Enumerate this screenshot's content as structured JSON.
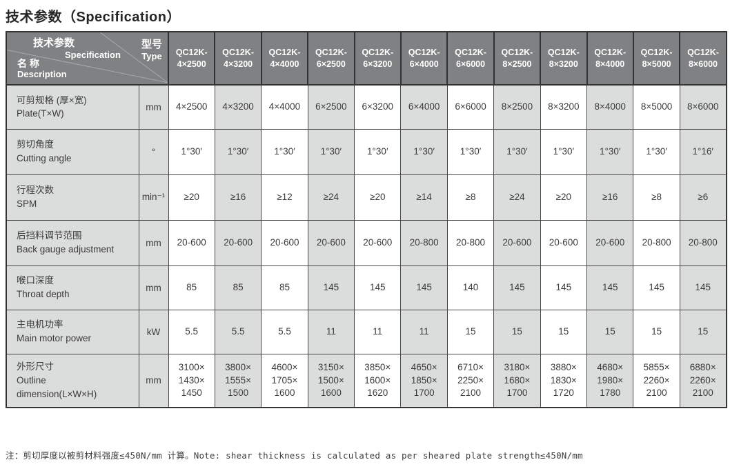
{
  "page": {
    "title": "技术参数（Specification）",
    "note": "注：剪切厚度以被剪材料强度≤450N/mm 计算。Note: shear thickness is calculated as per sheared plate strength≤450N/mm"
  },
  "colors": {
    "header_bg": "#7f8183",
    "row_shade": "#dbdcdc",
    "border": "#353535",
    "header_text": "#ffffff",
    "body_text": "#3b3b3b"
  },
  "table": {
    "corner": {
      "top": "技术参数",
      "top_sub": "Specification",
      "bottom": "名 称",
      "bottom_sub": "Description",
      "type_label": "型号",
      "type_sub": "Type"
    },
    "models": [
      {
        "line1": "QC12K-",
        "line2": "4×2500"
      },
      {
        "line1": "QC12K-",
        "line2": "4×3200"
      },
      {
        "line1": "QC12K-",
        "line2": "4×4000"
      },
      {
        "line1": "QC12K-",
        "line2": "6×2500"
      },
      {
        "line1": "QC12K-",
        "line2": "6×3200"
      },
      {
        "line1": "QC12K-",
        "line2": "6×4000"
      },
      {
        "line1": "QC12K-",
        "line2": "6×6000"
      },
      {
        "line1": "QC12K-",
        "line2": "8×2500"
      },
      {
        "line1": "QC12K-",
        "line2": "8×3200"
      },
      {
        "line1": "QC12K-",
        "line2": "8×4000"
      },
      {
        "line1": "QC12K-",
        "line2": "8×5000"
      },
      {
        "line1": "QC12K-",
        "line2": "8×6000"
      }
    ],
    "rows": [
      {
        "name_zh": "可剪规格 (厚×宽)",
        "name_en": "Plate(T×W)",
        "unit": "mm",
        "values": [
          "4×2500",
          "4×3200",
          "4×4000",
          "6×2500",
          "6×3200",
          "6×4000",
          "6×6000",
          "8×2500",
          "8×3200",
          "8×4000",
          "8×5000",
          "8×6000"
        ]
      },
      {
        "name_zh": "剪切角度",
        "name_en": "Cutting angle",
        "unit": "°",
        "values": [
          "1°30′",
          "1°30′",
          "1°30′",
          "1°30′",
          "1°30′",
          "1°30′",
          "1°30′",
          "1°30′",
          "1°30′",
          "1°30′",
          "1°30′",
          "1°16′"
        ]
      },
      {
        "name_zh": "行程次数",
        "name_en": "SPM",
        "unit": "min⁻¹",
        "values": [
          "≥20",
          "≥16",
          "≥12",
          "≥24",
          "≥20",
          "≥14",
          "≥8",
          "≥24",
          "≥20",
          "≥16",
          "≥8",
          "≥6"
        ]
      },
      {
        "name_zh": "后挡料调节范围",
        "name_en": "Back gauge adjustment",
        "unit": "mm",
        "values": [
          "20-600",
          "20-600",
          "20-600",
          "20-600",
          "20-600",
          "20-800",
          "20-800",
          "20-600",
          "20-600",
          "20-600",
          "20-800",
          "20-800"
        ]
      },
      {
        "name_zh": "喉口深度",
        "name_en": "Throat depth",
        "unit": "mm",
        "values": [
          "85",
          "85",
          "85",
          "145",
          "145",
          "145",
          "140",
          "145",
          "145",
          "145",
          "145",
          "145"
        ]
      },
      {
        "name_zh": "主电机功率",
        "name_en": "Main motor power",
        "unit": "kW",
        "values": [
          "5.5",
          "5.5",
          "5.5",
          "11",
          "11",
          "11",
          "15",
          "15",
          "15",
          "15",
          "15",
          "15"
        ]
      },
      {
        "name_zh": "外形尺寸",
        "name_en": "Outline\ndimension(L×W×H)",
        "unit": "mm",
        "values": [
          "3100×\n1430×\n1450",
          "3800×\n1555×\n1500",
          "4600×\n1705×\n1600",
          "3150×\n1500×\n1600",
          "3850×\n1600×\n1620",
          "4650×\n1850×\n1700",
          "6710×\n2250×\n2100",
          "3180×\n1680×\n1700",
          "3880×\n1830×\n1720",
          "4680×\n1980×\n1780",
          "5855×\n2260×\n2100",
          "6880×\n2260×\n2100"
        ]
      }
    ]
  }
}
